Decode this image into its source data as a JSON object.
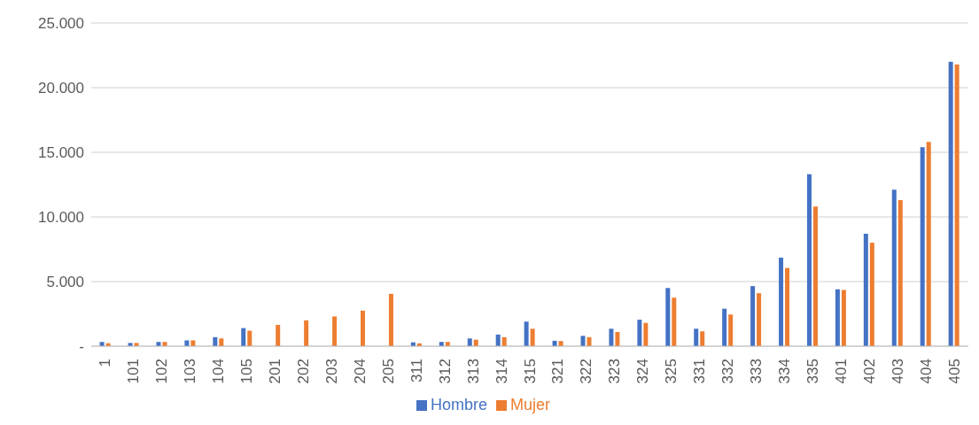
{
  "chart_data": {
    "type": "bar",
    "categories": [
      "1",
      "101",
      "102",
      "103",
      "104",
      "105",
      "201",
      "202",
      "203",
      "204",
      "205",
      "311",
      "312",
      "313",
      "314",
      "315",
      "321",
      "322",
      "323",
      "324",
      "325",
      "331",
      "332",
      "333",
      "334",
      "335",
      "401",
      "402",
      "403",
      "404",
      "405"
    ],
    "series": [
      {
        "name": "Hombre",
        "color": "#4472c4",
        "values": [
          330,
          250,
          330,
          450,
          700,
          1400,
          null,
          null,
          null,
          null,
          null,
          300,
          330,
          600,
          900,
          1900,
          420,
          800,
          1350,
          2050,
          4500,
          1350,
          2900,
          4650,
          6850,
          13300,
          4400,
          8700,
          12100,
          15400,
          22000
        ]
      },
      {
        "name": "Mujer",
        "color": "#ed7d31",
        "values": [
          230,
          250,
          330,
          450,
          600,
          1200,
          1650,
          2000,
          2300,
          2750,
          4050,
          220,
          330,
          500,
          700,
          1350,
          400,
          700,
          1100,
          1800,
          3750,
          1150,
          2450,
          4100,
          6050,
          10800,
          4350,
          8000,
          11300,
          15800,
          21800
        ]
      }
    ],
    "ylim": [
      0,
      25000
    ],
    "yticks": [
      {
        "value": 0,
        "label": "-"
      },
      {
        "value": 5000,
        "label": "5.000"
      },
      {
        "value": 10000,
        "label": "10.000"
      },
      {
        "value": 15000,
        "label": "15.000"
      },
      {
        "value": 20000,
        "label": "20.000"
      },
      {
        "value": 25000,
        "label": "25.000"
      }
    ],
    "grid": "y",
    "legend": "bottom"
  }
}
